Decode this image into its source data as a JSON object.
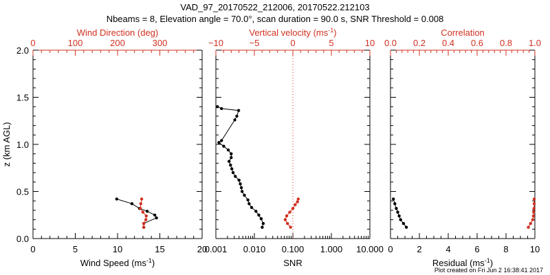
{
  "header": {
    "line1": "VAD_97_20170522_212006, 20170522.212103",
    "line2": "Nbeams = 8, Elevation angle = 70.0°, scan duration = 90.0 s, SNR Threshold = 0.008"
  },
  "footer": "Plot created on Fri Jun  2 16:38:41 2017",
  "colors": {
    "red": "#d03020",
    "black": "#000000"
  },
  "chart_data": [
    {
      "type": "line",
      "panel": "wind",
      "ylabel_main": "z (km AGL)",
      "ylabel_sup": "",
      "ylim": [
        0.0,
        2.0
      ],
      "yticks": [
        "0.0",
        "0.5",
        "1.0",
        "1.5",
        "2.0"
      ],
      "bottom_axis": {
        "label_main": "Wind Speed (ms",
        "label_sup": "-1",
        "label_end": ")",
        "xlim": [
          0,
          20
        ],
        "ticks": [
          "0",
          "5",
          "10",
          "15",
          "20"
        ]
      },
      "top_axis": {
        "label_main": "Wind Direction (deg)",
        "label_sup": "",
        "label_end": "",
        "xlim": [
          0,
          400
        ],
        "ticks": [
          "0",
          "100",
          "200",
          "300"
        ]
      },
      "series": [
        {
          "axis": "bottom",
          "color": "black",
          "x": [
            13.1,
            13.1,
            14.6,
            14.4,
            13.5,
            12.6,
            11.7,
            9.9
          ],
          "y": [
            0.12,
            0.16,
            0.22,
            0.25,
            0.29,
            0.32,
            0.37,
            0.42
          ]
        },
        {
          "axis": "top",
          "color": "red",
          "x": [
            262,
            262,
            267,
            268,
            260,
            254,
            255,
            257
          ],
          "y": [
            0.12,
            0.16,
            0.2,
            0.24,
            0.28,
            0.32,
            0.37,
            0.42
          ]
        }
      ]
    },
    {
      "type": "line",
      "panel": "snr",
      "log_x": true,
      "bottom_axis": {
        "label_main": "SNR",
        "label_sup": "",
        "label_end": "",
        "xlim": [
          0.001,
          10
        ],
        "ticks": [
          "0.001",
          "0.010",
          "0.100",
          "1.000",
          "10.000"
        ]
      },
      "top_axis": {
        "label_main": "Vertical velocity (ms",
        "label_sup": "-1",
        "label_end": ")",
        "xlim": [
          -10,
          10
        ],
        "ticks": [
          "−10",
          "−5",
          "0",
          "5",
          "10"
        ]
      },
      "ylim": [
        0.0,
        2.0
      ],
      "series": [
        {
          "axis": "bottom",
          "color": "black",
          "x": [
            0.016,
            0.017,
            0.015,
            0.013,
            0.011,
            0.0085,
            0.0073,
            0.0068,
            0.0055,
            0.0048,
            0.0046,
            0.0043,
            0.004,
            0.0032,
            0.0028,
            0.0026,
            0.0024,
            0.0022,
            0.0025,
            0.0025,
            0.0021,
            0.0016,
            0.0012,
            0.0014,
            0.0031,
            0.0035,
            0.0039,
            0.0014,
            0.0011
          ],
          "y": [
            0.12,
            0.16,
            0.21,
            0.25,
            0.29,
            0.33,
            0.37,
            0.41,
            0.46,
            0.5,
            0.54,
            0.58,
            0.62,
            0.66,
            0.7,
            0.74,
            0.78,
            0.82,
            0.86,
            0.9,
            0.94,
            0.98,
            1.02,
            1.04,
            1.26,
            1.3,
            1.36,
            1.38,
            1.4
          ]
        },
        {
          "axis": "top",
          "color": "red",
          "x": [
            -0.3,
            -0.7,
            -1.0,
            -0.8,
            -0.4,
            0.0,
            0.3,
            0.6,
            0.7
          ],
          "y": [
            0.12,
            0.16,
            0.2,
            0.24,
            0.28,
            0.32,
            0.36,
            0.39,
            0.42
          ]
        }
      ],
      "reference_line": {
        "axis": "top",
        "x": 0,
        "style": "dotted",
        "color": "red"
      }
    },
    {
      "type": "line",
      "panel": "residual",
      "bottom_axis": {
        "label_main": "Residual (ms",
        "label_sup": "-1",
        "label_end": ")",
        "xlim": [
          0,
          10
        ],
        "ticks": [
          "0",
          "2",
          "4",
          "6",
          "8",
          "10"
        ]
      },
      "top_axis": {
        "label_main": "Correlation",
        "label_sup": "",
        "label_end": "",
        "xlim": [
          0.0,
          1.0
        ],
        "ticks": [
          "0.0",
          "0.2",
          "0.4",
          "0.6",
          "0.8",
          "1.0"
        ]
      },
      "ylim": [
        0.0,
        2.0
      ],
      "series": [
        {
          "axis": "bottom",
          "color": "black",
          "x": [
            1.1,
            0.9,
            0.7,
            0.6,
            0.5,
            0.4,
            0.3,
            0.2
          ],
          "y": [
            0.12,
            0.16,
            0.2,
            0.24,
            0.28,
            0.32,
            0.37,
            0.42
          ]
        },
        {
          "axis": "top",
          "color": "red",
          "x": [
            0.955,
            0.97,
            0.985,
            0.99,
            0.992,
            0.994,
            0.995,
            0.995
          ],
          "y": [
            0.12,
            0.16,
            0.2,
            0.24,
            0.28,
            0.32,
            0.37,
            0.42
          ]
        }
      ]
    }
  ]
}
